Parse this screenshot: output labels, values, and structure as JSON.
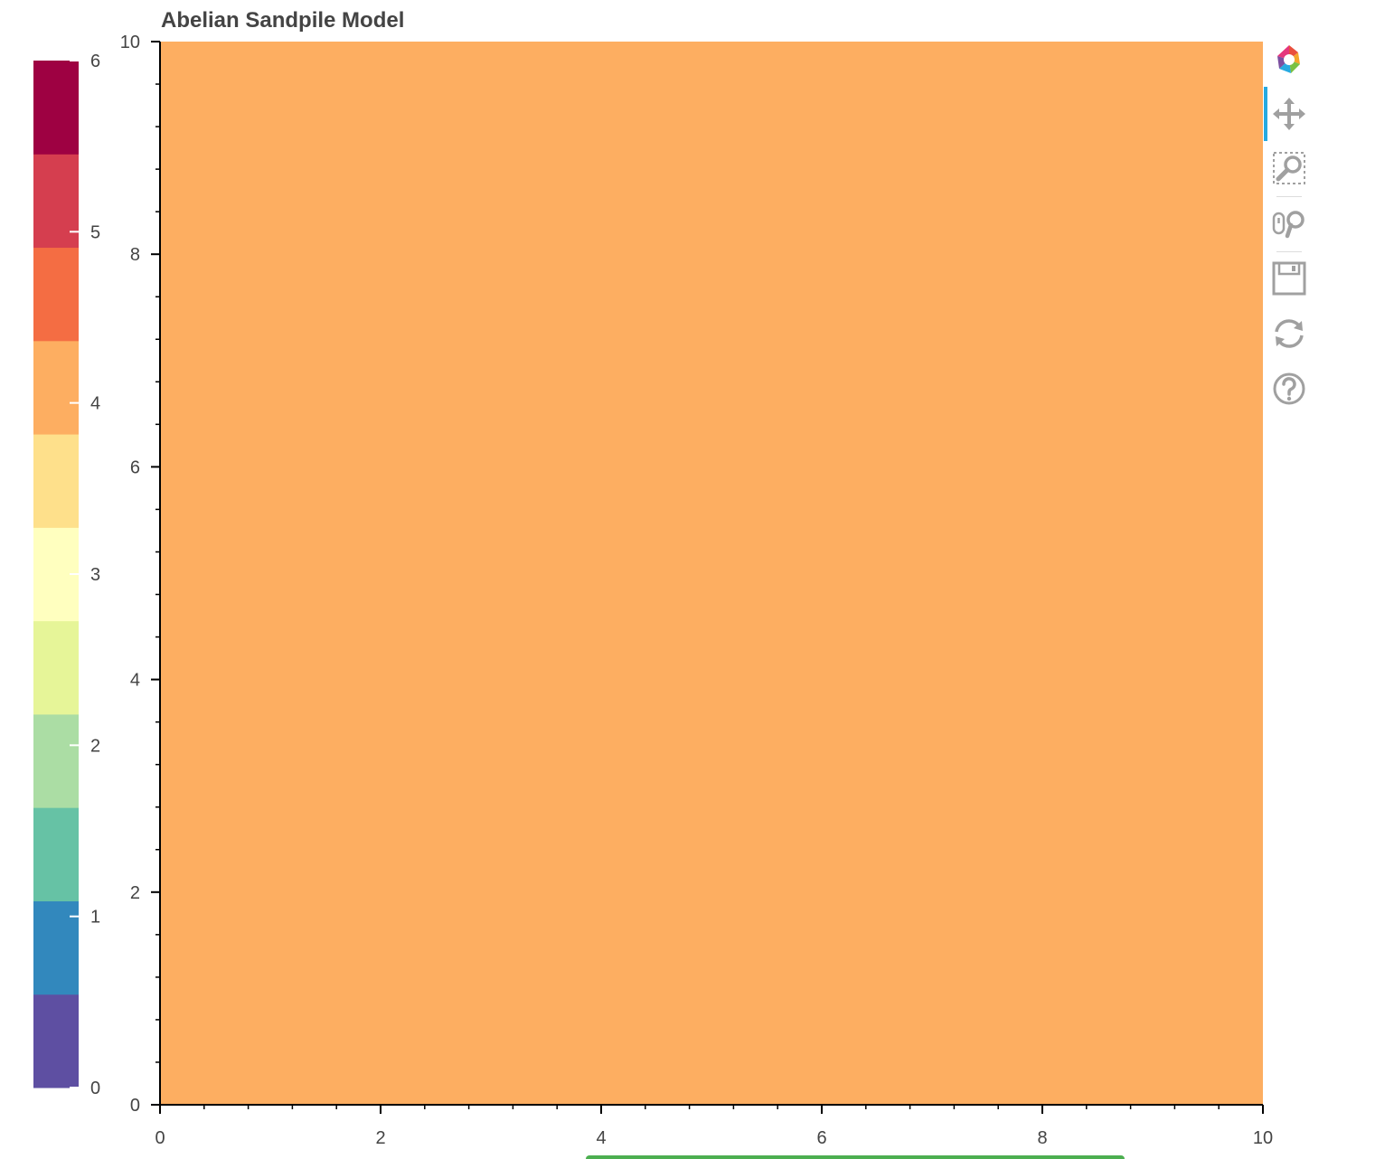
{
  "chart_data": {
    "type": "heatmap",
    "title": "Abelian Sandpile Model",
    "x_range": [
      0,
      10
    ],
    "y_range": [
      0,
      10
    ],
    "x_ticks": [
      0,
      2,
      4,
      6,
      8,
      10
    ],
    "y_ticks": [
      0,
      2,
      4,
      6,
      8,
      10
    ],
    "grid": false,
    "image": {
      "x": 0,
      "y": 0,
      "dw": 10,
      "dh": 10,
      "values": [
        [
          4
        ]
      ]
    },
    "color_mapper": {
      "low": 0,
      "high": 6,
      "palette": [
        "#5e4fa2",
        "#3288bd",
        "#66c2a5",
        "#abdda4",
        "#e6f598",
        "#ffffbf",
        "#fee08b",
        "#fdae61",
        "#f46d43",
        "#d53e4f",
        "#9e0142"
      ]
    },
    "colorbar": {
      "location": "left",
      "ticks": [
        0,
        1,
        2,
        3,
        4,
        5,
        6
      ]
    }
  },
  "toolbar": {
    "tools": [
      {
        "name": "bokeh-logo-icon"
      },
      {
        "name": "pan-icon",
        "active": true
      },
      {
        "name": "box-zoom-icon"
      },
      {
        "name": "wheel-zoom-icon"
      },
      {
        "name": "save-icon"
      },
      {
        "name": "reset-icon"
      },
      {
        "name": "help-icon"
      }
    ]
  }
}
